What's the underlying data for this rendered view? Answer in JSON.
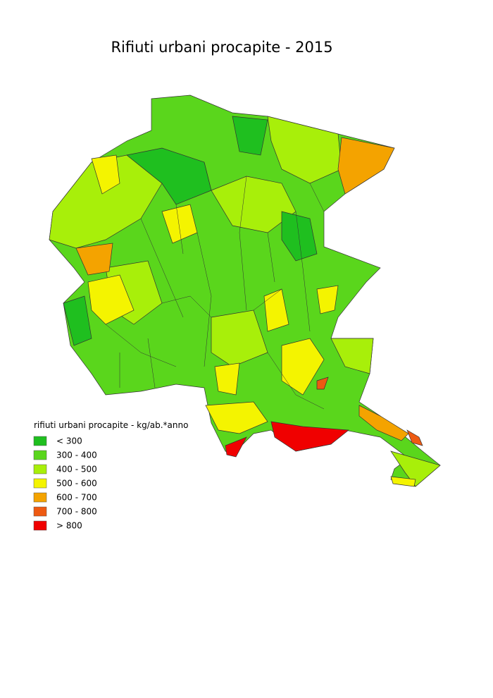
{
  "title": "Rifiuti urbani procapite - 2015",
  "legend": {
    "title": "rifiuti urbani procapite - kg/ab.*anno",
    "items": [
      {
        "label": "< 300",
        "color": "#1fbf1f"
      },
      {
        "label": "300 - 400",
        "color": "#5ad61c"
      },
      {
        "label": "400 - 500",
        "color": "#a8ef0a"
      },
      {
        "label": "500 - 600",
        "color": "#f4f400"
      },
      {
        "label": "600 - 700",
        "color": "#f4a300"
      },
      {
        "label": "700 - 800",
        "color": "#ee5a12"
      },
      {
        "label": "> 800",
        "color": "#f00000"
      }
    ]
  }
}
